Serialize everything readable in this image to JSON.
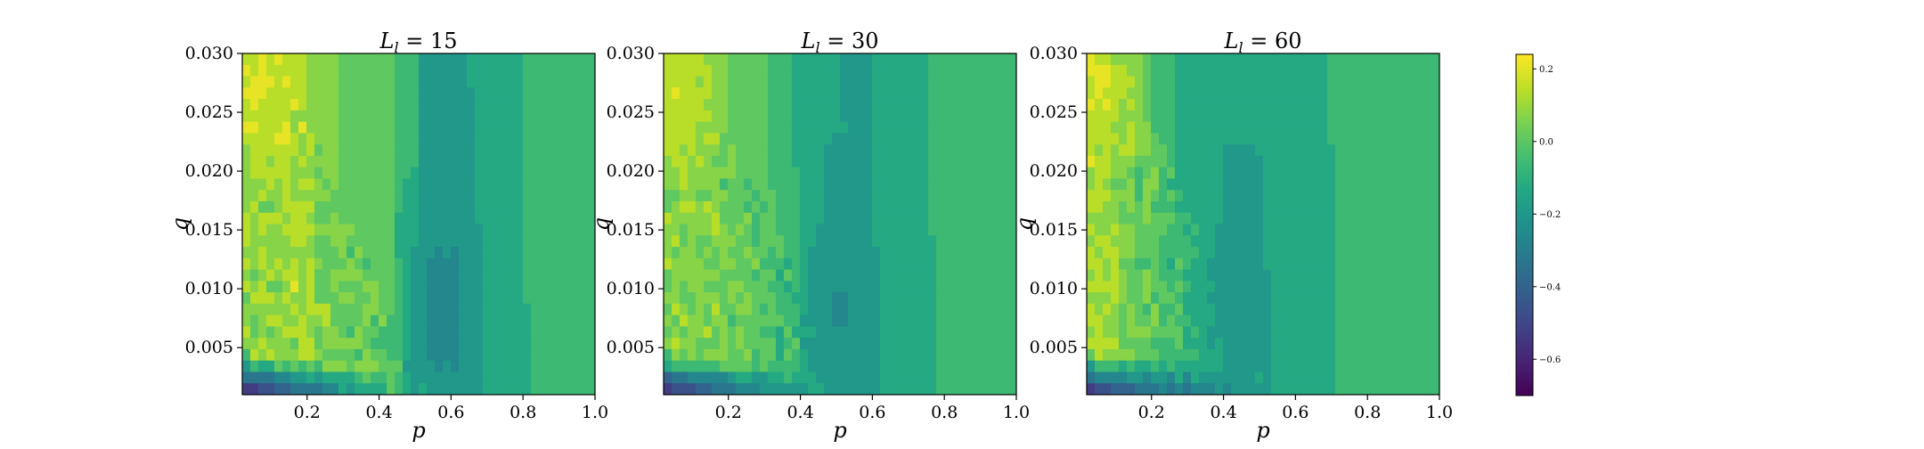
{
  "chart_data": [
    {
      "type": "heatmap",
      "title": "L_l = 15",
      "title_main": "L",
      "title_sub": "l",
      "title_rest": " = 15",
      "xlabel": "p",
      "ylabel": "q",
      "xlim": [
        0.02,
        1.0
      ],
      "ylim": [
        0.001,
        0.03
      ],
      "xticks": [
        "0.2",
        "0.4",
        "0.6",
        "0.8",
        "1.0"
      ],
      "yticks": [
        "0.005",
        "0.010",
        "0.015",
        "0.020",
        "0.025",
        "0.030"
      ],
      "band_x": [
        0.0,
        0.12,
        0.2,
        0.28,
        0.36,
        0.44,
        0.51,
        0.58,
        0.66,
        0.73,
        0.8,
        0.88,
        0.97
      ],
      "band_values": [
        0.08,
        0.1,
        0.04,
        0.02,
        0.0,
        -0.08,
        -0.17,
        -0.2,
        -0.16,
        -0.12,
        -0.07,
        -0.04
      ],
      "dip_center_x": 0.55,
      "dip_value": -0.26,
      "corner_min": -0.62,
      "hot_spot_value": 0.22,
      "noise_amplitude": 0.07
    },
    {
      "type": "heatmap",
      "title": "L_l = 30",
      "title_main": "L",
      "title_sub": "l",
      "title_rest": " = 30",
      "xlabel": "p",
      "ylabel": "q",
      "xlim": [
        0.02,
        1.0
      ],
      "ylim": [
        0.001,
        0.03
      ],
      "xticks": [
        "0.2",
        "0.4",
        "0.6",
        "0.8",
        "1.0"
      ],
      "yticks": [
        "0.005",
        "0.010",
        "0.015",
        "0.020",
        "0.025",
        "0.030"
      ],
      "band_x": [
        0.0,
        0.1,
        0.17,
        0.24,
        0.31,
        0.38,
        0.45,
        0.52,
        0.6,
        0.68,
        0.76,
        0.84,
        0.97
      ],
      "band_values": [
        0.06,
        0.05,
        0.02,
        -0.02,
        -0.06,
        -0.12,
        -0.16,
        -0.17,
        -0.14,
        -0.1,
        -0.06,
        -0.04
      ],
      "dip_center_x": 0.5,
      "dip_value": -0.24,
      "corner_min": -0.6,
      "hot_spot_value": 0.2,
      "noise_amplitude": 0.06
    },
    {
      "type": "heatmap",
      "title": "L_l = 60",
      "title_main": "L",
      "title_sub": "l",
      "title_rest": " = 60",
      "xlabel": "p",
      "ylabel": "q",
      "xlim": [
        0.02,
        1.0
      ],
      "ylim": [
        0.001,
        0.03
      ],
      "xticks": [
        "0.2",
        "0.4",
        "0.6",
        "0.8",
        "1.0"
      ],
      "yticks": [
        "0.005",
        "0.010",
        "0.015",
        "0.020",
        "0.025",
        "0.030"
      ],
      "band_x": [
        0.0,
        0.08,
        0.14,
        0.2,
        0.26,
        0.33,
        0.4,
        0.5,
        0.6,
        0.7,
        0.82,
        0.95
      ],
      "band_values": [
        0.1,
        0.04,
        0.0,
        -0.05,
        -0.1,
        -0.14,
        -0.16,
        -0.14,
        -0.1,
        -0.07,
        -0.04
      ],
      "dip_center_x": 0.43,
      "dip_value": -0.2,
      "corner_min": -0.58,
      "hot_spot_value": 0.2,
      "noise_amplitude": 0.06
    }
  ],
  "colorbar": {
    "colormap": "viridis",
    "min": -0.7,
    "max": 0.24,
    "ticks": [
      {
        "value": 0.2,
        "label": "0.2"
      },
      {
        "value": 0.0,
        "label": "0.0"
      },
      {
        "value": -0.2,
        "label": "−0.2"
      },
      {
        "value": -0.4,
        "label": "−0.4"
      },
      {
        "value": -0.6,
        "label": "−0.6"
      }
    ]
  }
}
